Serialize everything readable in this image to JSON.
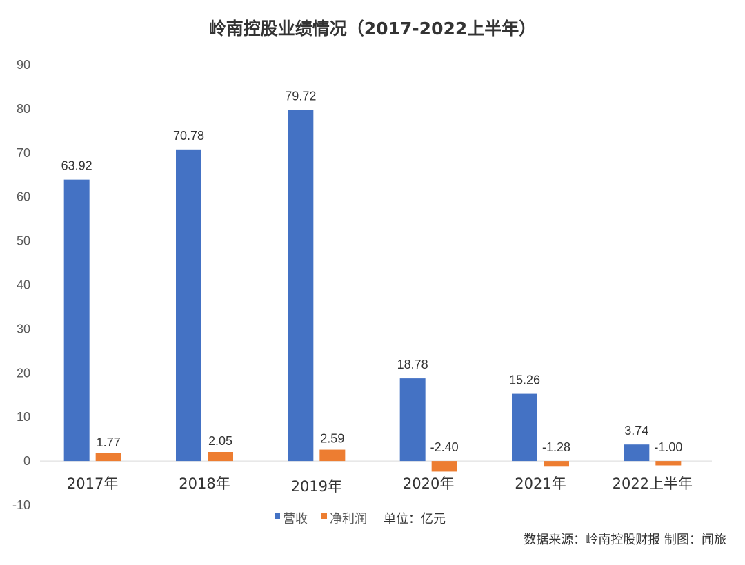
{
  "chart_data": {
    "type": "bar",
    "title": "岭南控股业绩情况（2017-2022上半年）",
    "categories": [
      "2017年",
      "2018年",
      "2019年",
      "2020年",
      "2021年",
      "2022上半年"
    ],
    "series": [
      {
        "name": "营收",
        "color": "#4472C4",
        "values": [
          63.92,
          70.78,
          79.72,
          18.78,
          15.26,
          3.74
        ],
        "labels": [
          "63.92",
          "70.78",
          "79.72",
          "18.78",
          "15.26",
          "3.74"
        ]
      },
      {
        "name": "净利润",
        "color": "#ED7D31",
        "values": [
          1.77,
          2.05,
          2.59,
          -2.4,
          -1.28,
          -1.0
        ],
        "labels": [
          "1.77",
          "2.05",
          "2.59",
          "-2.40",
          "-1.28",
          "-1.00"
        ]
      }
    ],
    "ylim": [
      -10,
      90
    ],
    "yticks": [
      "90",
      "80",
      "70",
      "60",
      "50",
      "40",
      "30",
      "20",
      "10",
      "0",
      "-10"
    ],
    "ytick_values": [
      90,
      80,
      70,
      60,
      50,
      40,
      30,
      20,
      10,
      0,
      -10
    ],
    "grid": false,
    "legend_position": "bottom-center",
    "unit_note": "单位：亿元",
    "source_note": "数据来源：岭南控股财报 制图：闻旅"
  }
}
